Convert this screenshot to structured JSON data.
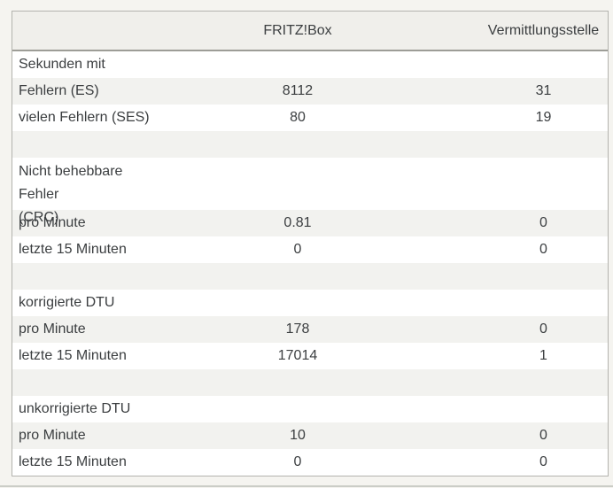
{
  "table": {
    "header": {
      "label_col": "",
      "fritzbox_col": "FRITZ!Box",
      "vermittlungsstelle_col": "Vermittlungsstelle"
    },
    "rows": [
      {
        "label": "Sekunden mit",
        "fritzbox": "",
        "vermittlungsstelle": ""
      },
      {
        "label": "Fehlern (ES)",
        "fritzbox": "8112",
        "vermittlungsstelle": "31"
      },
      {
        "label": "vielen Fehlern (SES)",
        "fritzbox": "80",
        "vermittlungsstelle": "19"
      },
      {
        "label": "",
        "fritzbox": "",
        "vermittlungsstelle": ""
      },
      {
        "label": "Nicht behebbare Fehler",
        "label_line2": "(CRC)",
        "fritzbox": "",
        "vermittlungsstelle": ""
      },
      {
        "label": "pro Minute",
        "fritzbox": "0.81",
        "vermittlungsstelle": "0"
      },
      {
        "label": "letzte 15 Minuten",
        "fritzbox": "0",
        "vermittlungsstelle": "0"
      },
      {
        "label": "",
        "fritzbox": "",
        "vermittlungsstelle": ""
      },
      {
        "label": "korrigierte DTU",
        "fritzbox": "",
        "vermittlungsstelle": ""
      },
      {
        "label": "pro Minute",
        "fritzbox": "178",
        "vermittlungsstelle": "0"
      },
      {
        "label": "letzte 15 Minuten",
        "fritzbox": "17014",
        "vermittlungsstelle": "1"
      },
      {
        "label": "",
        "fritzbox": "",
        "vermittlungsstelle": ""
      },
      {
        "label": "unkorrigierte DTU",
        "fritzbox": "",
        "vermittlungsstelle": ""
      },
      {
        "label": "pro Minute",
        "fritzbox": "10",
        "vermittlungsstelle": "0"
      },
      {
        "label": "letzte 15 Minuten",
        "fritzbox": "0",
        "vermittlungsstelle": "0"
      }
    ]
  },
  "colors": {
    "page_background": "#f5f4f0",
    "table_background": "#ffffff",
    "header_background": "#f0efeb",
    "stripe_background": "#f2f2ef",
    "table_border": "#b3b3ae",
    "header_separator": "#9d9d97",
    "text": "#3b3e40",
    "bottom_divider": "#cbcdc7"
  }
}
